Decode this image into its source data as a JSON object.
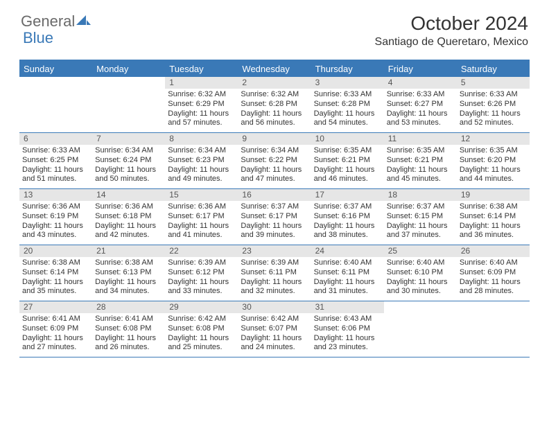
{
  "brand": {
    "text1": "General",
    "text2": "Blue"
  },
  "title": "October 2024",
  "location": "Santiago de Queretaro, Mexico",
  "colors": {
    "accent": "#3a79b7",
    "daybar": "#e6e6e6",
    "text": "#333333",
    "logo_gray": "#6a6a6a"
  },
  "dow": [
    "Sunday",
    "Monday",
    "Tuesday",
    "Wednesday",
    "Thursday",
    "Friday",
    "Saturday"
  ],
  "weeks": [
    [
      {
        "n": "",
        "sr": "",
        "ss": "",
        "dl": ""
      },
      {
        "n": "",
        "sr": "",
        "ss": "",
        "dl": ""
      },
      {
        "n": "1",
        "sr": "Sunrise: 6:32 AM",
        "ss": "Sunset: 6:29 PM",
        "dl": "Daylight: 11 hours and 57 minutes."
      },
      {
        "n": "2",
        "sr": "Sunrise: 6:32 AM",
        "ss": "Sunset: 6:28 PM",
        "dl": "Daylight: 11 hours and 56 minutes."
      },
      {
        "n": "3",
        "sr": "Sunrise: 6:33 AM",
        "ss": "Sunset: 6:28 PM",
        "dl": "Daylight: 11 hours and 54 minutes."
      },
      {
        "n": "4",
        "sr": "Sunrise: 6:33 AM",
        "ss": "Sunset: 6:27 PM",
        "dl": "Daylight: 11 hours and 53 minutes."
      },
      {
        "n": "5",
        "sr": "Sunrise: 6:33 AM",
        "ss": "Sunset: 6:26 PM",
        "dl": "Daylight: 11 hours and 52 minutes."
      }
    ],
    [
      {
        "n": "6",
        "sr": "Sunrise: 6:33 AM",
        "ss": "Sunset: 6:25 PM",
        "dl": "Daylight: 11 hours and 51 minutes."
      },
      {
        "n": "7",
        "sr": "Sunrise: 6:34 AM",
        "ss": "Sunset: 6:24 PM",
        "dl": "Daylight: 11 hours and 50 minutes."
      },
      {
        "n": "8",
        "sr": "Sunrise: 6:34 AM",
        "ss": "Sunset: 6:23 PM",
        "dl": "Daylight: 11 hours and 49 minutes."
      },
      {
        "n": "9",
        "sr": "Sunrise: 6:34 AM",
        "ss": "Sunset: 6:22 PM",
        "dl": "Daylight: 11 hours and 47 minutes."
      },
      {
        "n": "10",
        "sr": "Sunrise: 6:35 AM",
        "ss": "Sunset: 6:21 PM",
        "dl": "Daylight: 11 hours and 46 minutes."
      },
      {
        "n": "11",
        "sr": "Sunrise: 6:35 AM",
        "ss": "Sunset: 6:21 PM",
        "dl": "Daylight: 11 hours and 45 minutes."
      },
      {
        "n": "12",
        "sr": "Sunrise: 6:35 AM",
        "ss": "Sunset: 6:20 PM",
        "dl": "Daylight: 11 hours and 44 minutes."
      }
    ],
    [
      {
        "n": "13",
        "sr": "Sunrise: 6:36 AM",
        "ss": "Sunset: 6:19 PM",
        "dl": "Daylight: 11 hours and 43 minutes."
      },
      {
        "n": "14",
        "sr": "Sunrise: 6:36 AM",
        "ss": "Sunset: 6:18 PM",
        "dl": "Daylight: 11 hours and 42 minutes."
      },
      {
        "n": "15",
        "sr": "Sunrise: 6:36 AM",
        "ss": "Sunset: 6:17 PM",
        "dl": "Daylight: 11 hours and 41 minutes."
      },
      {
        "n": "16",
        "sr": "Sunrise: 6:37 AM",
        "ss": "Sunset: 6:17 PM",
        "dl": "Daylight: 11 hours and 39 minutes."
      },
      {
        "n": "17",
        "sr": "Sunrise: 6:37 AM",
        "ss": "Sunset: 6:16 PM",
        "dl": "Daylight: 11 hours and 38 minutes."
      },
      {
        "n": "18",
        "sr": "Sunrise: 6:37 AM",
        "ss": "Sunset: 6:15 PM",
        "dl": "Daylight: 11 hours and 37 minutes."
      },
      {
        "n": "19",
        "sr": "Sunrise: 6:38 AM",
        "ss": "Sunset: 6:14 PM",
        "dl": "Daylight: 11 hours and 36 minutes."
      }
    ],
    [
      {
        "n": "20",
        "sr": "Sunrise: 6:38 AM",
        "ss": "Sunset: 6:14 PM",
        "dl": "Daylight: 11 hours and 35 minutes."
      },
      {
        "n": "21",
        "sr": "Sunrise: 6:38 AM",
        "ss": "Sunset: 6:13 PM",
        "dl": "Daylight: 11 hours and 34 minutes."
      },
      {
        "n": "22",
        "sr": "Sunrise: 6:39 AM",
        "ss": "Sunset: 6:12 PM",
        "dl": "Daylight: 11 hours and 33 minutes."
      },
      {
        "n": "23",
        "sr": "Sunrise: 6:39 AM",
        "ss": "Sunset: 6:11 PM",
        "dl": "Daylight: 11 hours and 32 minutes."
      },
      {
        "n": "24",
        "sr": "Sunrise: 6:40 AM",
        "ss": "Sunset: 6:11 PM",
        "dl": "Daylight: 11 hours and 31 minutes."
      },
      {
        "n": "25",
        "sr": "Sunrise: 6:40 AM",
        "ss": "Sunset: 6:10 PM",
        "dl": "Daylight: 11 hours and 30 minutes."
      },
      {
        "n": "26",
        "sr": "Sunrise: 6:40 AM",
        "ss": "Sunset: 6:09 PM",
        "dl": "Daylight: 11 hours and 28 minutes."
      }
    ],
    [
      {
        "n": "27",
        "sr": "Sunrise: 6:41 AM",
        "ss": "Sunset: 6:09 PM",
        "dl": "Daylight: 11 hours and 27 minutes."
      },
      {
        "n": "28",
        "sr": "Sunrise: 6:41 AM",
        "ss": "Sunset: 6:08 PM",
        "dl": "Daylight: 11 hours and 26 minutes."
      },
      {
        "n": "29",
        "sr": "Sunrise: 6:42 AM",
        "ss": "Sunset: 6:08 PM",
        "dl": "Daylight: 11 hours and 25 minutes."
      },
      {
        "n": "30",
        "sr": "Sunrise: 6:42 AM",
        "ss": "Sunset: 6:07 PM",
        "dl": "Daylight: 11 hours and 24 minutes."
      },
      {
        "n": "31",
        "sr": "Sunrise: 6:43 AM",
        "ss": "Sunset: 6:06 PM",
        "dl": "Daylight: 11 hours and 23 minutes."
      },
      {
        "n": "",
        "sr": "",
        "ss": "",
        "dl": ""
      },
      {
        "n": "",
        "sr": "",
        "ss": "",
        "dl": ""
      }
    ]
  ]
}
